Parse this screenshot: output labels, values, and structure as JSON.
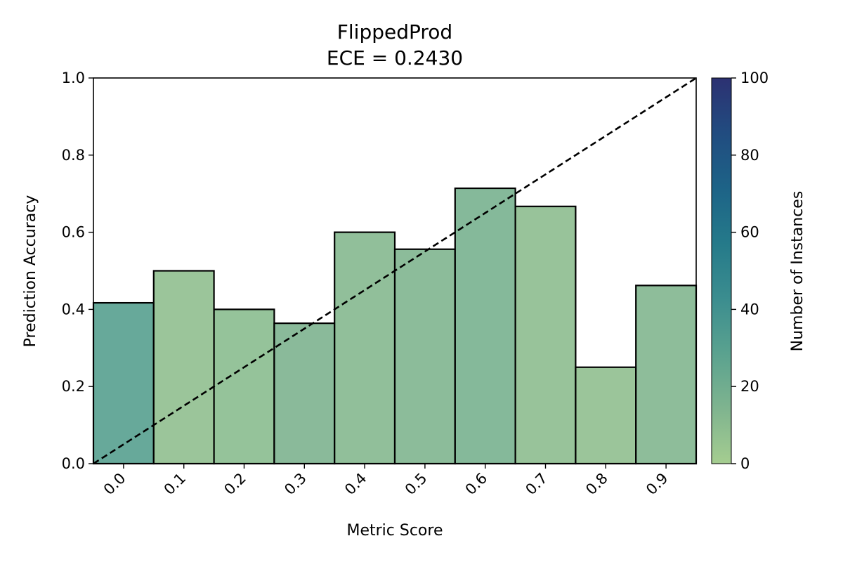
{
  "chart_data": {
    "type": "bar",
    "title": "FlippedProd",
    "subtitle": "ECE = 0.2430",
    "xlabel": "Metric Score",
    "ylabel": "Prediction Accuracy",
    "categories": [
      "0.0",
      "0.1",
      "0.2",
      "0.3",
      "0.4",
      "0.5",
      "0.6",
      "0.7",
      "0.8",
      "0.9"
    ],
    "x_centers": [
      0.0,
      0.1,
      0.2,
      0.3,
      0.4,
      0.5,
      0.6,
      0.7,
      0.8,
      0.9
    ],
    "bin_width": 0.1,
    "values": [
      0.417,
      0.5,
      0.4,
      0.364,
      0.6,
      0.556,
      0.714,
      0.667,
      0.25,
      0.462
    ],
    "counts": [
      30,
      8,
      10,
      15,
      12,
      14,
      17,
      9,
      8,
      13
    ],
    "xlim": [
      -0.05,
      0.95
    ],
    "ylim": [
      0,
      1.0
    ],
    "yticks": [
      "0.0",
      "0.2",
      "0.4",
      "0.6",
      "0.8",
      "1.0"
    ],
    "reference_line": {
      "style": "dashed",
      "from": [
        -0.05,
        0.0
      ],
      "to": [
        0.95,
        1.0
      ],
      "color": "#000000"
    },
    "colorbar": {
      "label": "Number of Instances",
      "range": [
        0,
        100
      ],
      "ticks": [
        "0",
        "20",
        "40",
        "60",
        "80",
        "100"
      ],
      "colormap": "crest",
      "colors": [
        "#a5cd90",
        "#7fb48f",
        "#5aa28f",
        "#3b8d8f",
        "#257a8a",
        "#1d6387",
        "#214c80",
        "#2c3172"
      ]
    },
    "grid": false,
    "legend": "none",
    "bar_edge_color": "#000000"
  }
}
